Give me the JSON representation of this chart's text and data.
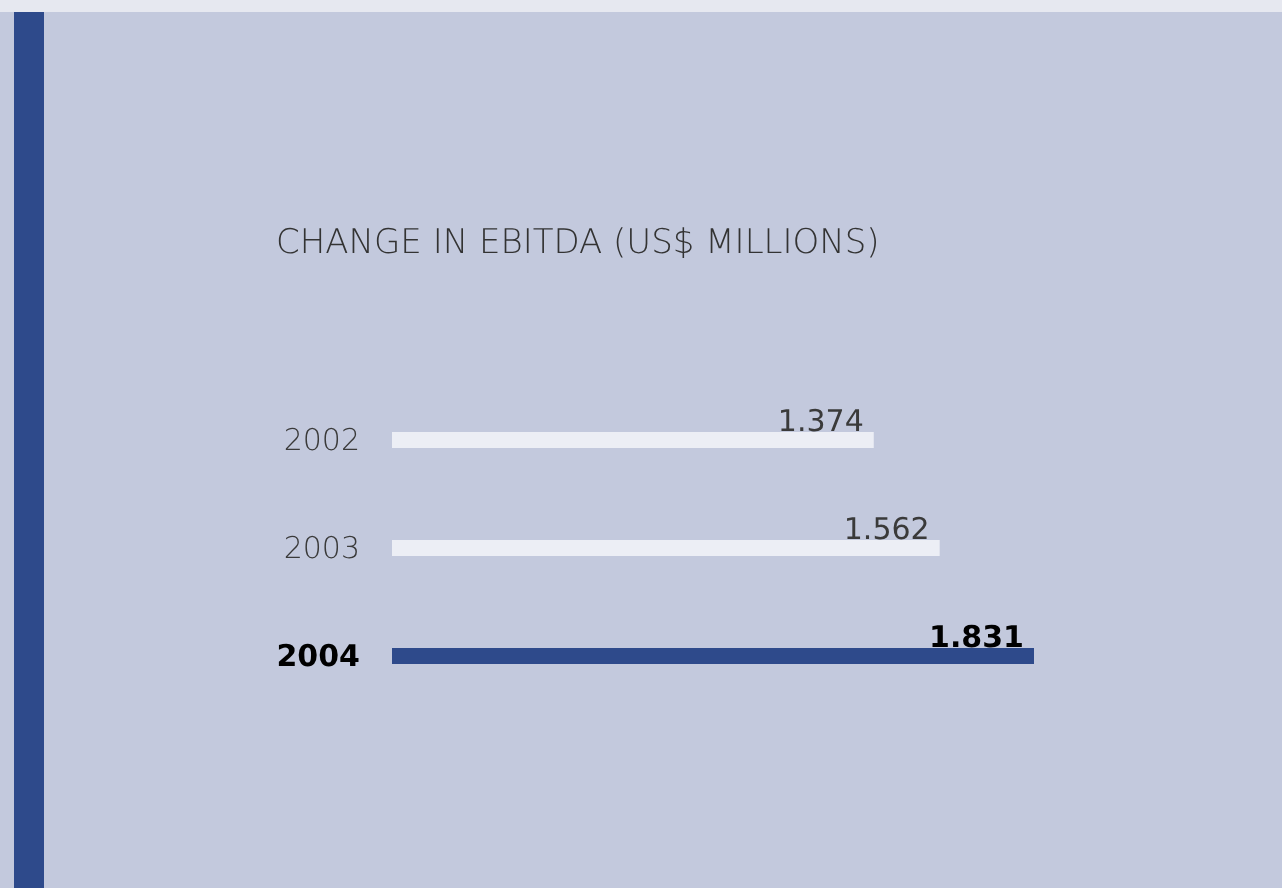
{
  "chart_data": {
    "type": "bar",
    "orientation": "horizontal",
    "title": "CHANGE IN EBITDA (US$ MILLIONS)",
    "categories": [
      "2002",
      "2003",
      "2004"
    ],
    "values": [
      1374,
      1562,
      1831
    ],
    "colors": [
      "#eceef5",
      "#eceef5",
      "#2e4a8b"
    ],
    "value_labels": [
      "1.374",
      "1.562",
      "1.831"
    ]
  }
}
